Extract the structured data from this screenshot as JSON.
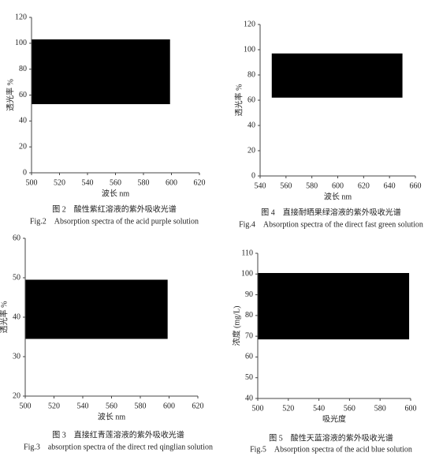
{
  "chart_data": [
    {
      "type": "area",
      "title": "图 2　酸性紫红溶液的紫外吸收光谱",
      "subtitle": "Fig.2　Absorption spectra of the acid purple solution",
      "xlabel": "波长 nm",
      "ylabel": "透光率 %",
      "x": [
        500,
        599
      ],
      "values": [
        103,
        103
      ],
      "lower": [
        53,
        53
      ],
      "color": "#000000",
      "xlim": [
        500,
        620
      ],
      "xticks": [
        500,
        520,
        540,
        560,
        580,
        600,
        620
      ],
      "ylim": [
        0,
        120
      ],
      "yticks": [
        0,
        20,
        40,
        60,
        80,
        100,
        120
      ]
    },
    {
      "type": "area",
      "title": "图 4　直接耐晒果绿溶液的紫外吸收光谱",
      "subtitle": "Fig.4　Absorption spectra of the direct fast green solution",
      "xlabel": "波长 nm",
      "ylabel": "透光率 %",
      "x": [
        549,
        650
      ],
      "values": [
        97,
        97
      ],
      "lower": [
        62,
        62
      ],
      "color": "#000000",
      "xlim": [
        540,
        660
      ],
      "xticks": [
        540,
        560,
        580,
        600,
        620,
        640,
        660
      ],
      "ylim": [
        0,
        120
      ],
      "yticks": [
        0,
        20,
        40,
        60,
        80,
        100,
        120
      ]
    },
    {
      "type": "area",
      "title": "图 3　直接红青莲溶液的紫外吸收光谱",
      "subtitle": "Fig.3　absorption spectra of the direct red qinglian solution",
      "xlabel": "波长 nm",
      "ylabel": "透光率 %",
      "x": [
        500,
        599
      ],
      "values": [
        49.5,
        49.5
      ],
      "lower": [
        34.5,
        34.5
      ],
      "color": "#000000",
      "xlim": [
        500,
        620
      ],
      "xticks": [
        500,
        520,
        540,
        560,
        580,
        600,
        620
      ],
      "ylim": [
        20,
        60
      ],
      "yticks": [
        20,
        30,
        40,
        50,
        60
      ]
    },
    {
      "type": "area",
      "title": "图 5　酸性天蓝溶液的紫外吸收光谱",
      "subtitle": "Fig.5　Absorption spectra of the acid blue solution",
      "xlabel": "吸光度",
      "ylabel": "浓度 (mg/L)",
      "x": [
        500,
        599
      ],
      "values": [
        100.5,
        100.5
      ],
      "lower": [
        68.5,
        68.5
      ],
      "color": "#000000",
      "xlim": [
        500,
        600
      ],
      "xticks": [
        500,
        520,
        540,
        560,
        580,
        600
      ],
      "ylim": [
        40,
        110
      ],
      "yticks": [
        40,
        50,
        60,
        70,
        80,
        90,
        100,
        110
      ]
    }
  ]
}
